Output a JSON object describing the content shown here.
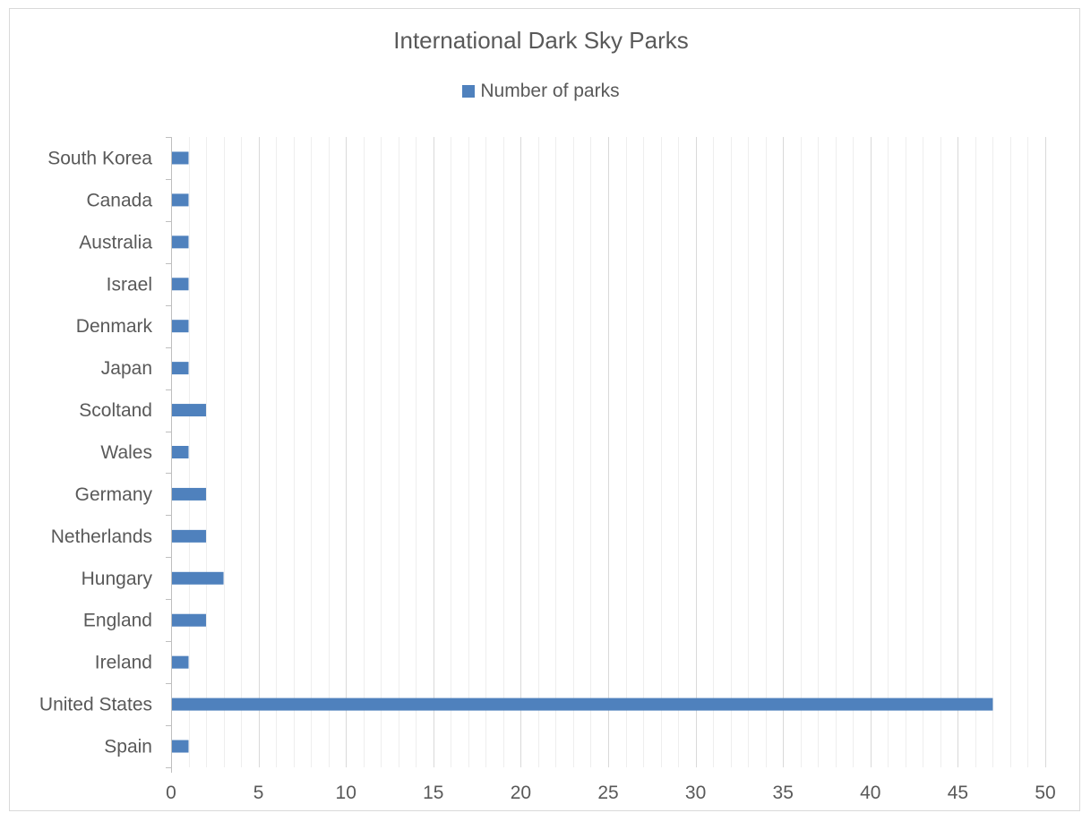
{
  "chart_data": {
    "type": "bar",
    "orientation": "horizontal",
    "title": "International Dark Sky Parks",
    "categories": [
      "Spain",
      "United States",
      "Ireland",
      "England",
      "Hungary",
      "Netherlands",
      "Germany",
      "Wales",
      "Scoltand",
      "Japan",
      "Denmark",
      "Israel",
      "Australia",
      "Canada",
      "South Korea"
    ],
    "series": [
      {
        "name": "Number of parks",
        "values": [
          1,
          47,
          1,
          2,
          3,
          2,
          2,
          1,
          2,
          1,
          1,
          1,
          1,
          1,
          1
        ]
      }
    ],
    "xlim": [
      0,
      50
    ],
    "major_ticks": [
      0,
      5,
      10,
      15,
      20,
      25,
      30,
      35,
      40,
      45,
      50
    ],
    "grid": "major and minor vertical",
    "legend": "top",
    "colors": {
      "bar": "#4f81bd",
      "major_grid": "#d9d9d9",
      "minor_grid": "#eeeeee",
      "text": "#595959"
    }
  }
}
